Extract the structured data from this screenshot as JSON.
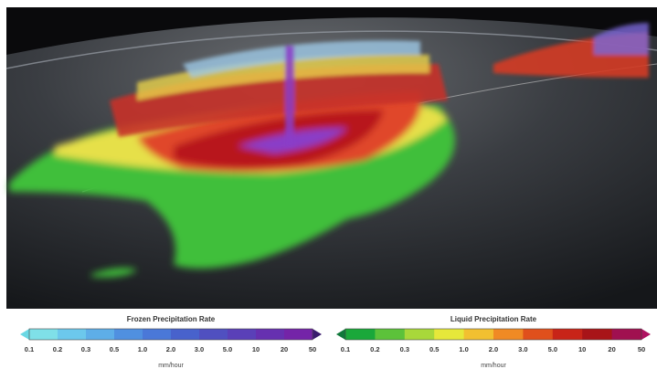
{
  "legends": [
    {
      "title": "Frozen Precipitation Rate",
      "labels": [
        "0.1",
        "0.2",
        "0.3",
        "0.5",
        "1.0",
        "2.0",
        "3.0",
        "5.0",
        "10",
        "20",
        "50"
      ],
      "unit": "mm/hour"
    },
    {
      "title": "Liquid Precipitation Rate",
      "labels": [
        "0.1",
        "0.2",
        "0.3",
        "0.5",
        "1.0",
        "2.0",
        "3.0",
        "5.0",
        "10",
        "20",
        "50"
      ],
      "unit": "mm/hour"
    }
  ]
}
